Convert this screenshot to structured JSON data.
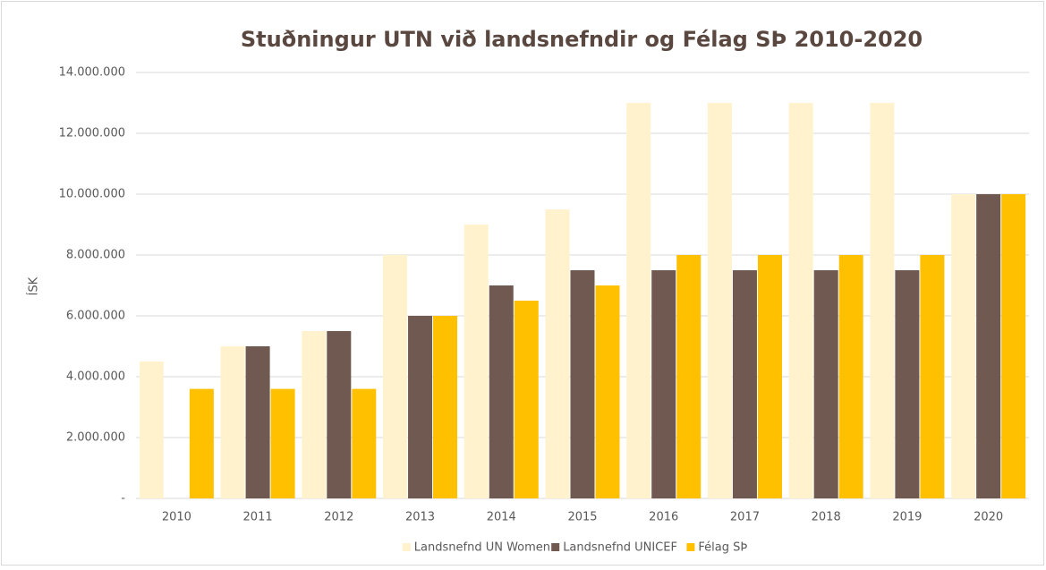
{
  "chart_data": {
    "type": "bar",
    "title": "Stuðningur UTN við landsnefndir og Félag SÞ 2010-2020",
    "y_label": "ÍSK",
    "categories": [
      "2010",
      "2011",
      "2012",
      "2013",
      "2014",
      "2015",
      "2016",
      "2017",
      "2018",
      "2019",
      "2020"
    ],
    "series": [
      {
        "name": "Landsnefnd UN Women",
        "color": "#fff2cc",
        "values": [
          4500000,
          5000000,
          5500000,
          8000000,
          9000000,
          9500000,
          13000000,
          13000000,
          13000000,
          13000000,
          10000000
        ]
      },
      {
        "name": "Landsnefnd UNICEF",
        "color": "#705950",
        "values": [
          0,
          5000000,
          5500000,
          6000000,
          7000000,
          7500000,
          7500000,
          7500000,
          7500000,
          7500000,
          10000000
        ]
      },
      {
        "name": "Félag SÞ",
        "color": "#ffc000",
        "values": [
          3600000,
          3600000,
          3600000,
          6000000,
          6500000,
          7000000,
          8000000,
          8000000,
          8000000,
          8000000,
          10000000
        ]
      }
    ],
    "ylim": [
      0,
      14000000
    ],
    "yticks": [
      {
        "value": 0,
        "label": "-"
      },
      {
        "value": 2000000,
        "label": "2.000.000"
      },
      {
        "value": 4000000,
        "label": "4.000.000"
      },
      {
        "value": 6000000,
        "label": "6.000.000"
      },
      {
        "value": 8000000,
        "label": "8.000.000"
      },
      {
        "value": 10000000,
        "label": "10.000.000"
      },
      {
        "value": 12000000,
        "label": "12.000.000"
      },
      {
        "value": 14000000,
        "label": "14.000.000"
      }
    ],
    "grid": true,
    "legend": "bottom"
  }
}
